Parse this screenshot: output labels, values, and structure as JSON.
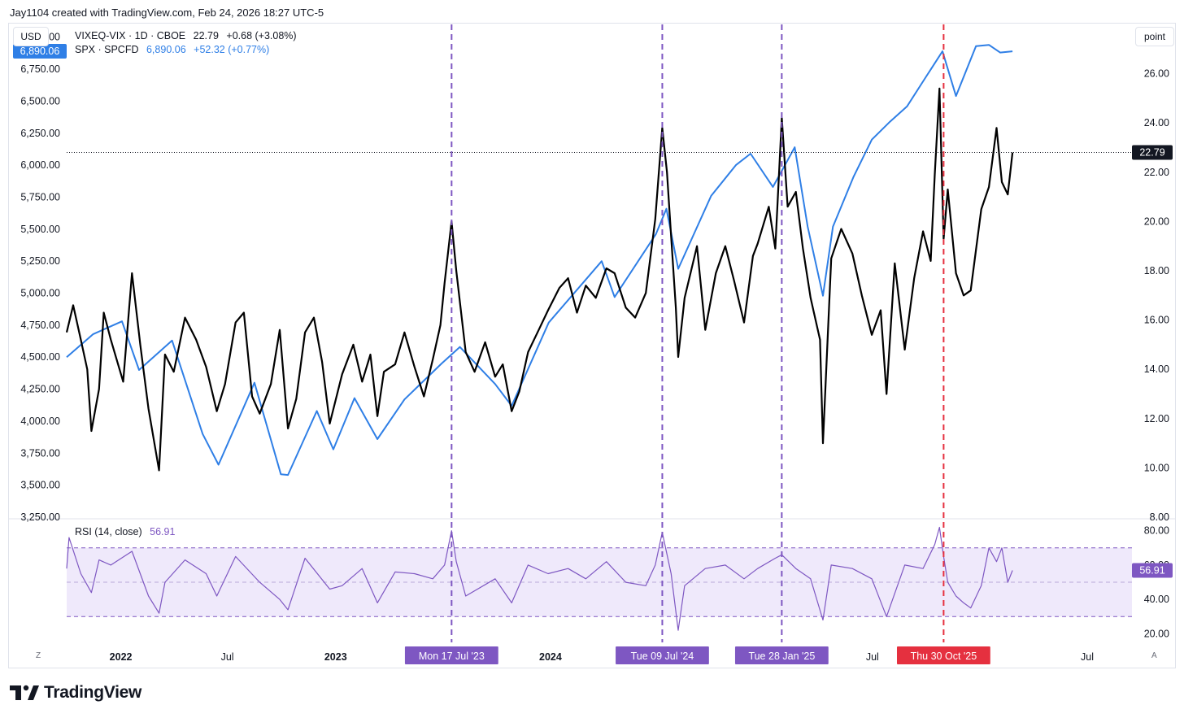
{
  "header": {
    "text": "Jay1104 created with TradingView.com, Feb 24, 2026 18:27 UTC-5"
  },
  "currency_button": "USD",
  "unit_button": "point",
  "legend": {
    "line1": {
      "label": "VIXEQ-VIX · 1D · CBOE",
      "value": "22.79",
      "change": "+0.68 (+3.08%)"
    },
    "line2": {
      "label": "SPX · SPCFD",
      "value": "6,890.06",
      "change": "+52.32 (+0.77%)"
    }
  },
  "rsi_legend": {
    "label": "RSI (14, close)",
    "value": "56.91"
  },
  "corner": {
    "left": "Z",
    "right": "A"
  },
  "footer": {
    "brand": "TradingView"
  },
  "colors": {
    "spx": "#2f7fe6",
    "vixeq": "#000000",
    "rsi": "#7e57c2",
    "purple_marker": "#7e57c2",
    "red_marker": "#e5303f",
    "rsi_band": "#efe9fb"
  },
  "chart_data": [
    {
      "type": "line",
      "title": "",
      "x_ticks": [
        "2022",
        "Jul",
        "2023",
        "2024",
        "Jul",
        "Jul"
      ],
      "x_range": [
        "2021-10-01",
        "2026-09-15"
      ],
      "left_axis": {
        "unit": "USD",
        "ylim": [
          3250,
          7100
        ],
        "ticks": [
          "7,000.00",
          "6,750.00",
          "6,500.00",
          "6,250.00",
          "6,000.00",
          "5,750.00",
          "5,500.00",
          "5,250.00",
          "5,000.00",
          "4,750.00",
          "4,500.00",
          "4,250.00",
          "4,000.00",
          "3,750.00",
          "3,500.00",
          "3,250.00"
        ]
      },
      "right_axis": {
        "unit": "point",
        "ylim": [
          8,
          28
        ],
        "ticks": [
          "26.00",
          "24.00",
          "22.00",
          "20.00",
          "18.00",
          "16.00",
          "14.00",
          "12.00",
          "10.00",
          "8.00"
        ]
      },
      "last_value_labels": {
        "left": "6,890.06",
        "right": "22.79"
      },
      "series": [
        {
          "name": "SPX · SPCFD",
          "axis": "left",
          "color": "#2f7fe6",
          "x": [
            "2021-10-01",
            "2021-11-15",
            "2022-01-03",
            "2022-02-01",
            "2022-03-29",
            "2022-05-20",
            "2022-06-16",
            "2022-08-16",
            "2022-09-30",
            "2022-10-12",
            "2022-11-30",
            "2022-12-28",
            "2023-02-02",
            "2023-03-13",
            "2023-04-28",
            "2023-06-30",
            "2023-07-31",
            "2023-09-29",
            "2023-10-27",
            "2023-12-29",
            "2024-03-28",
            "2024-04-19",
            "2024-06-28",
            "2024-07-16",
            "2024-08-05",
            "2024-09-30",
            "2024-11-11",
            "2024-12-06",
            "2025-01-13",
            "2025-02-19",
            "2025-03-13",
            "2025-04-08",
            "2025-04-25",
            "2025-05-30",
            "2025-06-30",
            "2025-07-31",
            "2025-08-29",
            "2025-09-30",
            "2025-10-28",
            "2025-11-20",
            "2025-12-24",
            "2026-01-15",
            "2026-02-03",
            "2026-02-24"
          ],
          "values": [
            4500,
            4680,
            4780,
            4400,
            4630,
            3900,
            3660,
            4300,
            3585,
            3580,
            4080,
            3780,
            4180,
            3860,
            4170,
            4450,
            4580,
            4290,
            4120,
            4770,
            5250,
            4970,
            5460,
            5660,
            5190,
            5760,
            6000,
            6090,
            5830,
            6140,
            5520,
            4980,
            5520,
            5910,
            6200,
            6340,
            6460,
            6690,
            6890,
            6540,
            6930,
            6940,
            6880,
            6890
          ]
        },
        {
          "name": "VIXEQ-VIX · 1D · CBOE",
          "axis": "right",
          "color": "#000000",
          "x": [
            "2021-10-01",
            "2021-10-12",
            "2021-10-25",
            "2021-11-05",
            "2021-11-12",
            "2021-11-25",
            "2021-12-03",
            "2021-12-15",
            "2022-01-05",
            "2022-01-20",
            "2022-02-03",
            "2022-02-17",
            "2022-03-07",
            "2022-03-17",
            "2022-04-01",
            "2022-04-20",
            "2022-05-09",
            "2022-05-26",
            "2022-06-13",
            "2022-06-27",
            "2022-07-15",
            "2022-07-29",
            "2022-08-12",
            "2022-08-25",
            "2022-09-13",
            "2022-09-28",
            "2022-10-12",
            "2022-10-26",
            "2022-11-10",
            "2022-11-25",
            "2022-12-09",
            "2022-12-22",
            "2023-01-12",
            "2023-01-31",
            "2023-02-15",
            "2023-03-01",
            "2023-03-13",
            "2023-03-24",
            "2023-04-12",
            "2023-04-28",
            "2023-05-15",
            "2023-05-31",
            "2023-06-15",
            "2023-06-28",
            "2023-07-05",
            "2023-07-17",
            "2023-07-25",
            "2023-08-10",
            "2023-08-25",
            "2023-09-12",
            "2023-09-29",
            "2023-10-12",
            "2023-10-27",
            "2023-11-09",
            "2023-11-24",
            "2023-12-12",
            "2023-12-28",
            "2024-01-16",
            "2024-01-31",
            "2024-02-15",
            "2024-03-01",
            "2024-03-18",
            "2024-04-05",
            "2024-04-19",
            "2024-05-08",
            "2024-05-24",
            "2024-06-11",
            "2024-06-27",
            "2024-07-09",
            "2024-07-17",
            "2024-07-24",
            "2024-08-01",
            "2024-08-05",
            "2024-08-16",
            "2024-09-06",
            "2024-09-20",
            "2024-10-08",
            "2024-10-24",
            "2024-11-08",
            "2024-11-25",
            "2024-12-10",
            "2024-12-18",
            "2025-01-06",
            "2025-01-17",
            "2025-01-28",
            "2025-02-07",
            "2025-02-21",
            "2025-03-05",
            "2025-03-18",
            "2025-04-03",
            "2025-04-08",
            "2025-04-22",
            "2025-05-09",
            "2025-05-28",
            "2025-06-13",
            "2025-06-30",
            "2025-07-15",
            "2025-07-25",
            "2025-08-08",
            "2025-08-25",
            "2025-09-10",
            "2025-09-25",
            "2025-10-08",
            "2025-10-15",
            "2025-10-23",
            "2025-10-30",
            "2025-11-06",
            "2025-11-20",
            "2025-12-03",
            "2025-12-15",
            "2026-01-02",
            "2026-01-15",
            "2026-01-28",
            "2026-02-06",
            "2026-02-16",
            "2026-02-24"
          ],
          "values": [
            15.5,
            16.6,
            15.2,
            14.0,
            11.5,
            13.2,
            16.3,
            15.2,
            13.5,
            17.9,
            15.0,
            12.4,
            9.9,
            14.6,
            13.9,
            16.1,
            15.2,
            14.1,
            12.3,
            13.4,
            15.9,
            16.3,
            12.9,
            12.2,
            13.4,
            15.6,
            11.6,
            12.8,
            15.5,
            16.1,
            14.3,
            11.8,
            13.8,
            15.0,
            13.5,
            14.6,
            12.1,
            13.9,
            14.2,
            15.5,
            14.1,
            12.9,
            14.4,
            15.8,
            17.5,
            20.0,
            18.0,
            14.7,
            13.9,
            15.1,
            13.7,
            14.2,
            12.3,
            13.1,
            14.7,
            15.6,
            16.4,
            17.3,
            17.7,
            16.3,
            17.4,
            16.9,
            18.1,
            17.9,
            16.5,
            16.1,
            17.1,
            20.1,
            23.8,
            22.0,
            19.4,
            16.5,
            14.5,
            16.9,
            19.0,
            15.6,
            17.9,
            19.0,
            17.6,
            15.9,
            18.6,
            19.1,
            20.6,
            18.9,
            24.2,
            20.6,
            21.2,
            18.9,
            16.9,
            15.2,
            11.0,
            18.5,
            19.7,
            18.7,
            17.0,
            15.4,
            16.4,
            13.0,
            18.3,
            14.8,
            17.7,
            19.6,
            18.4,
            21.9,
            25.4,
            19.3,
            21.3,
            17.9,
            17.0,
            17.2,
            20.5,
            21.4,
            23.8,
            21.6,
            21.1,
            22.8
          ]
        },
        {
          "name": "RSI (14, close)",
          "panel": "rsi",
          "color": "#7e57c2",
          "x": [
            "2021-10-01",
            "2021-10-05",
            "2021-10-25",
            "2021-11-12",
            "2021-11-25",
            "2021-12-15",
            "2022-01-20",
            "2022-02-17",
            "2022-03-07",
            "2022-03-17",
            "2022-04-20",
            "2022-05-26",
            "2022-06-13",
            "2022-07-15",
            "2022-08-25",
            "2022-09-28",
            "2022-10-12",
            "2022-11-10",
            "2022-12-22",
            "2023-01-12",
            "2023-02-15",
            "2023-03-13",
            "2023-04-12",
            "2023-05-15",
            "2023-06-15",
            "2023-07-05",
            "2023-07-17",
            "2023-07-25",
            "2023-08-10",
            "2023-09-29",
            "2023-10-27",
            "2023-11-24",
            "2023-12-28",
            "2024-01-31",
            "2024-03-01",
            "2024-04-05",
            "2024-05-08",
            "2024-06-11",
            "2024-06-27",
            "2024-07-09",
            "2024-07-24",
            "2024-08-05",
            "2024-08-16",
            "2024-09-20",
            "2024-10-24",
            "2024-11-25",
            "2024-12-18",
            "2025-01-17",
            "2025-01-28",
            "2025-02-21",
            "2025-03-18",
            "2025-04-08",
            "2025-04-22",
            "2025-05-28",
            "2025-06-30",
            "2025-07-25",
            "2025-08-25",
            "2025-09-25",
            "2025-10-15",
            "2025-10-23",
            "2025-10-30",
            "2025-11-06",
            "2025-11-20",
            "2025-12-03",
            "2025-12-15",
            "2026-01-02",
            "2026-01-15",
            "2026-01-28",
            "2026-02-06",
            "2026-02-16",
            "2026-02-24"
          ],
          "values": [
            58,
            76,
            55,
            44,
            63,
            60,
            68,
            42,
            32,
            50,
            63,
            55,
            42,
            65,
            50,
            40,
            34,
            64,
            46,
            48,
            58,
            38,
            56,
            55,
            52,
            60,
            80,
            62,
            42,
            52,
            38,
            60,
            55,
            58,
            52,
            62,
            50,
            48,
            60,
            79,
            55,
            22,
            48,
            58,
            60,
            52,
            58,
            64,
            66,
            58,
            52,
            28,
            60,
            58,
            52,
            30,
            60,
            58,
            72,
            82,
            65,
            50,
            42,
            38,
            35,
            48,
            70,
            62,
            70,
            50,
            56.91
          ]
        }
      ],
      "oscillator": {
        "name": "RSI (14, close)",
        "ylim": [
          15,
          86
        ],
        "ticks": [
          "80.00",
          "60.00",
          "40.00",
          "20.00"
        ],
        "bands": [
          30,
          70
        ],
        "mid": 50,
        "last": "56.91"
      },
      "markers": [
        {
          "date": "2023-07-17",
          "label": "Mon 17 Jul '23",
          "color": "#7e57c2"
        },
        {
          "date": "2024-07-09",
          "label": "Tue 09 Jul '24",
          "color": "#7e57c2"
        },
        {
          "date": "2025-01-28",
          "label": "Tue 28 Jan '25",
          "color": "#7e57c2"
        },
        {
          "date": "2025-10-30",
          "label": "Thu 30 Oct '25",
          "color": "#e5303f"
        }
      ]
    }
  ]
}
